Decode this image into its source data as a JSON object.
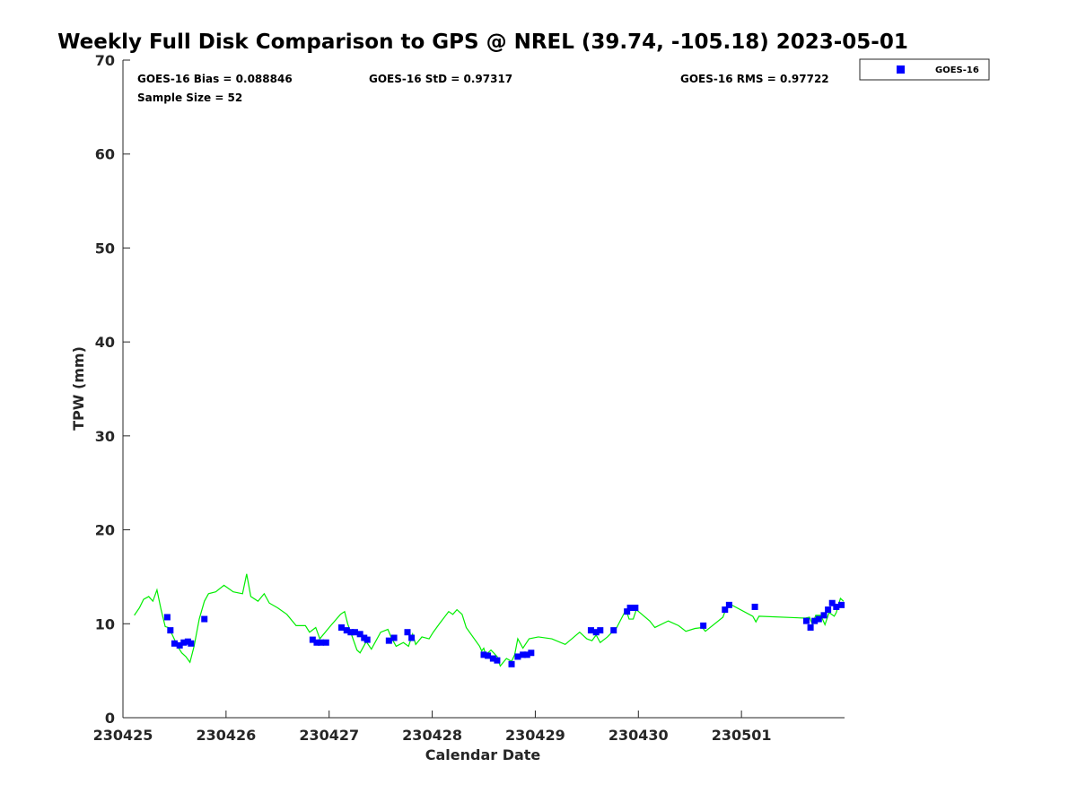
{
  "chart_data": {
    "type": "scatter",
    "title": "Weekly Full Disk Comparison to GPS @ NREL (39.74, -105.18) 2023-05-01",
    "xlabel": "Calendar Date",
    "ylabel": "TPW (mm)",
    "xlim": [
      0,
      7
    ],
    "ylim": [
      0,
      70
    ],
    "x_unit": "days since 230425",
    "x_ticks": [
      {
        "value": 0,
        "label": "230425"
      },
      {
        "value": 1,
        "label": "230426"
      },
      {
        "value": 2,
        "label": "230427"
      },
      {
        "value": 3,
        "label": "230428"
      },
      {
        "value": 4,
        "label": "230429"
      },
      {
        "value": 5,
        "label": "230430"
      },
      {
        "value": 6,
        "label": "230501"
      }
    ],
    "y_ticks": [
      0,
      10,
      20,
      30,
      40,
      50,
      60,
      70
    ],
    "grid": false,
    "legend": {
      "placement": "outside-top-right",
      "entries": [
        "GOES-16"
      ]
    },
    "annotations": {
      "bias": "GOES-16 Bias = 0.088846",
      "std": "GOES-16 StD = 0.97317",
      "rms": "GOES-16 RMS = 0.97722",
      "sample": "Sample Size = 52"
    },
    "colors": {
      "goes": "#0000ff",
      "gps": "#00ee00"
    },
    "series": [
      {
        "name": "GOES-16",
        "kind": "scatter",
        "x": [
          0.43,
          0.46,
          0.5,
          0.55,
          0.59,
          0.63,
          0.66,
          0.79,
          1.84,
          1.88,
          1.92,
          1.97,
          2.12,
          2.17,
          2.21,
          2.25,
          2.3,
          2.34,
          2.37,
          2.58,
          2.63,
          2.76,
          2.8,
          3.5,
          3.54,
          3.59,
          3.63,
          3.77,
          3.83,
          3.88,
          3.92,
          3.96,
          4.54,
          4.59,
          4.63,
          4.76,
          4.89,
          4.92,
          4.97,
          5.63,
          5.84,
          5.88,
          6.13,
          6.63,
          6.67,
          6.71,
          6.75,
          6.8,
          6.84,
          6.88,
          6.92,
          6.97
        ],
        "y": [
          10.7,
          9.3,
          7.9,
          7.7,
          8.0,
          8.1,
          7.9,
          10.5,
          8.3,
          8.0,
          8.0,
          8.0,
          9.6,
          9.3,
          9.1,
          9.1,
          8.9,
          8.5,
          8.3,
          8.2,
          8.5,
          9.1,
          8.5,
          6.7,
          6.6,
          6.3,
          6.1,
          5.7,
          6.5,
          6.7,
          6.7,
          6.9,
          9.3,
          9.1,
          9.3,
          9.3,
          11.3,
          11.7,
          11.7,
          9.8,
          11.5,
          12.0,
          11.8,
          10.3,
          9.6,
          10.3,
          10.5,
          10.9,
          11.5,
          12.2,
          11.8,
          12.0
        ]
      },
      {
        "name": "GPS",
        "kind": "line",
        "x": [
          0.11,
          0.16,
          0.2,
          0.25,
          0.29,
          0.33,
          0.37,
          0.41,
          0.44,
          0.48,
          0.53,
          0.57,
          0.61,
          0.65,
          0.69,
          0.74,
          0.79,
          0.83,
          0.9,
          0.98,
          1.07,
          1.16,
          1.2,
          1.24,
          1.31,
          1.37,
          1.42,
          1.5,
          1.59,
          1.68,
          1.77,
          1.81,
          1.87,
          1.91,
          2.0,
          2.11,
          2.15,
          2.18,
          2.27,
          2.3,
          2.36,
          2.41,
          2.5,
          2.57,
          2.6,
          2.65,
          2.72,
          2.77,
          2.81,
          2.84,
          2.9,
          2.97,
          3.01,
          3.07,
          3.16,
          3.2,
          3.24,
          3.29,
          3.33,
          3.46,
          3.48,
          3.5,
          3.52,
          3.57,
          3.63,
          3.66,
          3.72,
          3.77,
          3.8,
          3.83,
          3.88,
          3.94,
          4.03,
          4.16,
          4.29,
          4.43,
          4.5,
          4.55,
          4.59,
          4.63,
          4.7,
          4.79,
          4.88,
          4.91,
          4.95,
          4.98,
          5.11,
          5.16,
          5.29,
          5.39,
          5.46,
          5.55,
          5.62,
          5.65,
          5.82,
          5.83,
          5.87,
          6.11,
          6.14,
          6.17,
          6.62,
          6.66,
          6.69,
          6.72,
          6.77,
          6.81,
          6.85,
          6.9,
          6.92,
          6.96,
          6.99
        ],
        "y": [
          10.9,
          11.7,
          12.6,
          12.9,
          12.4,
          13.6,
          11.5,
          9.7,
          9.6,
          8.8,
          7.6,
          6.9,
          6.5,
          5.9,
          7.6,
          10.5,
          12.4,
          13.2,
          13.4,
          14.1,
          13.4,
          13.2,
          15.3,
          12.9,
          12.4,
          13.2,
          12.2,
          11.7,
          11.0,
          9.8,
          9.8,
          9.1,
          9.6,
          8.4,
          9.6,
          11.0,
          11.3,
          10.0,
          7.2,
          6.9,
          8.1,
          7.3,
          9.1,
          9.4,
          8.6,
          7.6,
          8.0,
          7.6,
          8.9,
          7.8,
          8.6,
          8.4,
          9.1,
          10.0,
          11.3,
          11.0,
          11.5,
          11.0,
          9.6,
          7.6,
          7.1,
          7.4,
          6.7,
          7.2,
          6.5,
          5.5,
          6.3,
          6.0,
          6.7,
          8.4,
          7.4,
          8.4,
          8.6,
          8.4,
          7.8,
          9.1,
          8.4,
          8.2,
          8.8,
          8.0,
          8.6,
          9.6,
          11.5,
          10.5,
          10.5,
          11.5,
          10.3,
          9.6,
          10.3,
          9.8,
          9.2,
          9.5,
          9.6,
          9.2,
          10.7,
          11.0,
          12.2,
          10.8,
          10.2,
          10.8,
          10.6,
          10.7,
          9.9,
          10.9,
          10.9,
          9.9,
          11.2,
          10.8,
          11.2,
          12.7,
          12.4
        ]
      }
    ]
  }
}
